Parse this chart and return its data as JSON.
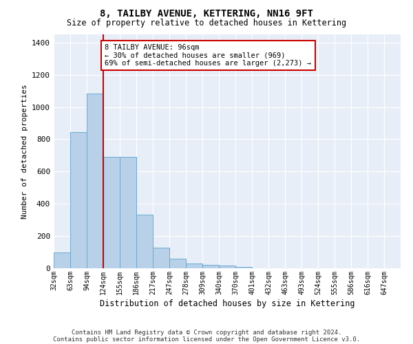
{
  "title": "8, TAILBY AVENUE, KETTERING, NN16 9FT",
  "subtitle": "Size of property relative to detached houses in Kettering",
  "xlabel": "Distribution of detached houses by size in Kettering",
  "ylabel": "Number of detached properties",
  "bar_values": [
    98,
    843,
    1085,
    693,
    693,
    332,
    130,
    60,
    30,
    20,
    15,
    10,
    0,
    0,
    0,
    0,
    0,
    0,
    0,
    0
  ],
  "categories": [
    "32sqm",
    "63sqm",
    "94sqm",
    "124sqm",
    "155sqm",
    "186sqm",
    "217sqm",
    "247sqm",
    "278sqm",
    "309sqm",
    "340sqm",
    "370sqm",
    "401sqm",
    "432sqm",
    "463sqm",
    "493sqm",
    "524sqm",
    "555sqm",
    "586sqm",
    "616sqm",
    "647sqm"
  ],
  "bar_color": "#b8d0e8",
  "bar_edge_color": "#6aaad4",
  "vline_color": "#cc0000",
  "annotation_text": "8 TAILBY AVENUE: 96sqm\n← 30% of detached houses are smaller (969)\n69% of semi-detached houses are larger (2,273) →",
  "annotation_box_color": "#ffffff",
  "annotation_box_edge": "#cc0000",
  "ylim": [
    0,
    1450
  ],
  "yticks": [
    0,
    200,
    400,
    600,
    800,
    1000,
    1200,
    1400
  ],
  "background_color": "#e8eef8",
  "grid_color": "#ffffff",
  "fig_background": "#ffffff",
  "footer1": "Contains HM Land Registry data © Crown copyright and database right 2024.",
  "footer2": "Contains public sector information licensed under the Open Government Licence v3.0."
}
